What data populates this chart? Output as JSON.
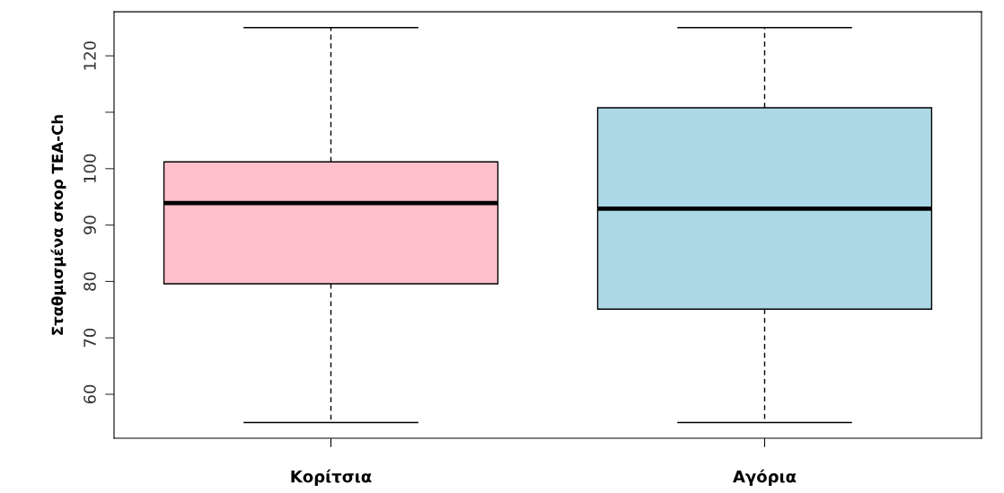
{
  "chart_data": {
    "type": "box",
    "ylabel": "Σταθμισμένα σκορ TEA-Ch",
    "categories": [
      "Κορίτσια",
      "Αγόρια"
    ],
    "colors": [
      "#ffc0cb",
      "#add8e6"
    ],
    "boxes": [
      {
        "low": 55,
        "q1": 79.6,
        "median": 93.9,
        "q3": 101.2,
        "high": 125
      },
      {
        "low": 55,
        "q1": 75.1,
        "median": 92.9,
        "q3": 110.8,
        "high": 125
      }
    ],
    "ylim": [
      52.2,
      127.8
    ],
    "yticks": [
      60,
      70,
      80,
      90,
      100,
      {
        "value": 110,
        "label": null
      },
      120
    ],
    "grid": false
  }
}
